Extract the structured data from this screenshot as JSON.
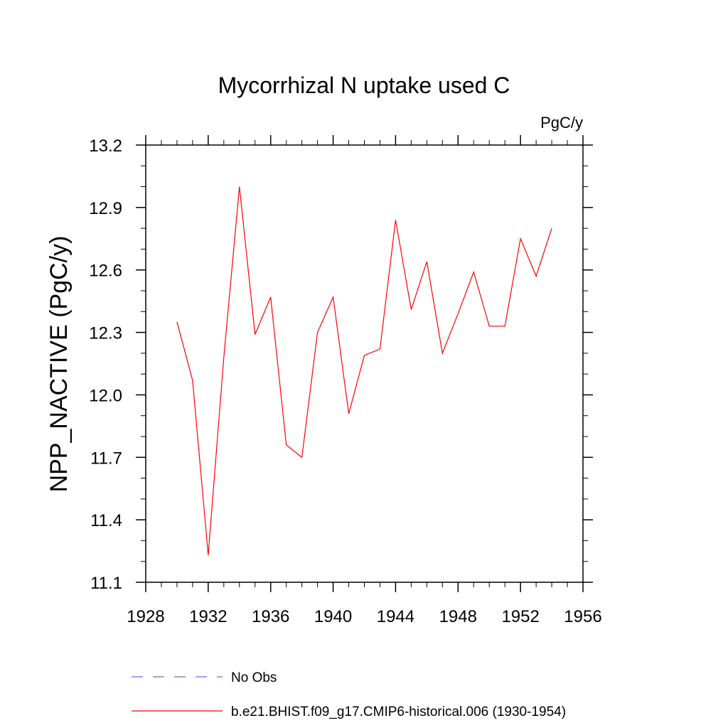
{
  "chart_data": {
    "type": "line",
    "title": "Mycorrhizal N uptake used C",
    "units": "PgC/y",
    "xlabel": "",
    "ylabel": "NPP_NACTIVE  (PgC/y)",
    "xlim": [
      1928,
      1956
    ],
    "ylim": [
      11.1,
      13.2
    ],
    "xticks": [
      1928,
      1932,
      1936,
      1940,
      1944,
      1948,
      1952,
      1956
    ],
    "xtick_labels": [
      "1928",
      "1932",
      "1936",
      "1940",
      "1944",
      "1948",
      "1952",
      "1956"
    ],
    "yticks": [
      11.1,
      11.4,
      11.7,
      12.0,
      12.3,
      12.6,
      12.9,
      13.2
    ],
    "ytick_labels": [
      "11.1",
      "11.4",
      "11.7",
      "12.0",
      "12.3",
      "12.6",
      "12.9",
      "13.2"
    ],
    "grid": false,
    "series": [
      {
        "name": "b.e21.BHIST.f09_g17.CMIP6-historical.006 (1930-1954)",
        "color": "#ff0000",
        "style": "solid",
        "x": [
          1930,
          1931,
          1932,
          1933,
          1934,
          1935,
          1936,
          1937,
          1938,
          1939,
          1940,
          1941,
          1942,
          1943,
          1944,
          1945,
          1946,
          1947,
          1948,
          1949,
          1950,
          1951,
          1952,
          1953,
          1954
        ],
        "values": [
          12.35,
          12.07,
          11.23,
          12.18,
          13.0,
          12.29,
          12.47,
          11.76,
          11.7,
          12.3,
          12.47,
          11.91,
          12.19,
          12.22,
          12.84,
          12.41,
          12.64,
          12.2,
          12.39,
          12.59,
          12.33,
          12.33,
          12.75,
          12.57,
          12.8
        ]
      }
    ],
    "legend": {
      "placement": "bottom",
      "entries": [
        {
          "label": "No Obs",
          "color": "#6a6ad0",
          "style": "dashed"
        },
        {
          "label": "b.e21.BHIST.f09_g17.CMIP6-historical.006 (1930-1954)",
          "color": "#ff0000",
          "style": "solid"
        }
      ]
    }
  }
}
